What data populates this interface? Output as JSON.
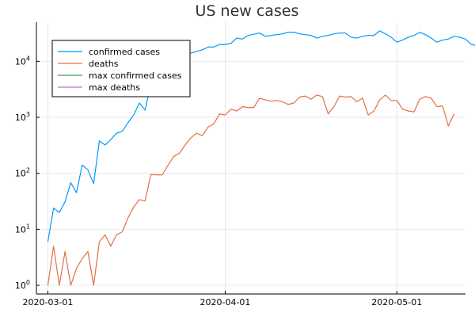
{
  "chart_data": {
    "type": "line",
    "title": "US new cases",
    "xlabel": "",
    "ylabel": "",
    "yscale": "log10",
    "ylim": [
      0.7,
      50000
    ],
    "xlim": [
      "2020-02-28",
      "2020-05-13"
    ],
    "grid": true,
    "legend_position": "top-left",
    "x_ticks": [
      "2020-03-01",
      "2020-04-01",
      "2020-05-01"
    ],
    "y_ticks": [
      {
        "value": 1,
        "base": "10",
        "exp": "0"
      },
      {
        "value": 10,
        "base": "10",
        "exp": "1"
      },
      {
        "value": 100,
        "base": "10",
        "exp": "2"
      },
      {
        "value": 1000,
        "base": "10",
        "exp": "3"
      },
      {
        "value": 10000,
        "base": "10",
        "exp": "4"
      }
    ],
    "start_date": "2020-03-01",
    "series": [
      {
        "name": "confirmed cases",
        "color": "#009AFA",
        "values": [
          6,
          24,
          20,
          31,
          68,
          45,
          140,
          116,
          65,
          380,
          320,
          400,
          520,
          560,
          800,
          1100,
          1800,
          1350,
          4000,
          5500,
          6000,
          8000,
          9500,
          11500,
          13500,
          14000,
          15000,
          16000,
          18000,
          18000,
          20000,
          20000,
          21000,
          26000,
          25000,
          29000,
          30500,
          32000,
          28000,
          29000,
          30000,
          31000,
          33000,
          33000,
          31000,
          30000,
          29000,
          26000,
          28000,
          29000,
          31000,
          32000,
          32000,
          27000,
          26000,
          28000,
          29000,
          29000,
          35000,
          31000,
          27000,
          22000,
          24000,
          27000,
          29000,
          33000,
          30000,
          26000,
          22000,
          24000,
          25000,
          28000,
          27000,
          25000,
          20000,
          19000
        ]
      },
      {
        "name": "deaths",
        "color": "#E26F46",
        "values": [
          1,
          5,
          1,
          4,
          1,
          2,
          3,
          4,
          1,
          6,
          8,
          5,
          8,
          9,
          16,
          25,
          34,
          32,
          95,
          94,
          94,
          140,
          200,
          230,
          320,
          430,
          520,
          470,
          670,
          760,
          1150,
          1100,
          1400,
          1300,
          1550,
          1500,
          1500,
          2200,
          2050,
          1950,
          2000,
          1900,
          1700,
          1800,
          2300,
          2400,
          2100,
          2500,
          2350,
          1150,
          1550,
          2400,
          2300,
          2350,
          1900,
          2200,
          1100,
          1300,
          2050,
          2500,
          2000,
          2000,
          1400,
          1300,
          1250,
          2100,
          2350,
          2200,
          1550,
          1600,
          700,
          1150
        ]
      },
      {
        "name": "max confirmed cases",
        "color": "#3DA44D",
        "values": []
      },
      {
        "name": "max deaths",
        "color": "#C271D2",
        "values": []
      }
    ]
  }
}
